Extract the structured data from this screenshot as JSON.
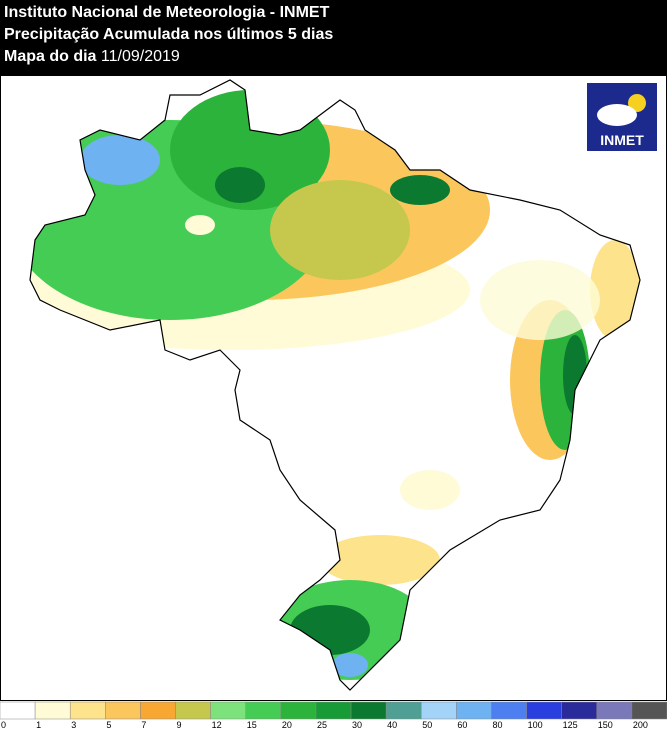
{
  "header": {
    "line1": "Instituto Nacional de Meteorologia - INMET",
    "line2": "Precipitação Acumulada nos últimos 5 dias",
    "line3_label": "Mapa do dia",
    "line3_date": "11/09/2019"
  },
  "logo": {
    "text": "INMET"
  },
  "legend": {
    "items": [
      {
        "label": 0,
        "color": "#ffffff"
      },
      {
        "label": 1,
        "color": "#fefbd6"
      },
      {
        "label": 3,
        "color": "#fde38b"
      },
      {
        "label": 5,
        "color": "#fbc65c"
      },
      {
        "label": 7,
        "color": "#f9a733"
      },
      {
        "label": 9,
        "color": "#c6c84e"
      },
      {
        "label": 12,
        "color": "#7ee27c"
      },
      {
        "label": 15,
        "color": "#45cc55"
      },
      {
        "label": 20,
        "color": "#2cb33b"
      },
      {
        "label": 25,
        "color": "#179b36"
      },
      {
        "label": 30,
        "color": "#0b7a30"
      },
      {
        "label": 40,
        "color": "#4f9f95"
      },
      {
        "label": 50,
        "color": "#a3d3f7"
      },
      {
        "label": 60,
        "color": "#6fb2f2"
      },
      {
        "label": 80,
        "color": "#4d7ff0"
      },
      {
        "label": 100,
        "color": "#2a3ee0"
      },
      {
        "label": 125,
        "color": "#2a2a9a"
      },
      {
        "label": 150,
        "color": "#7a78b8"
      },
      {
        "label": 200,
        "color": "#555555"
      }
    ]
  }
}
